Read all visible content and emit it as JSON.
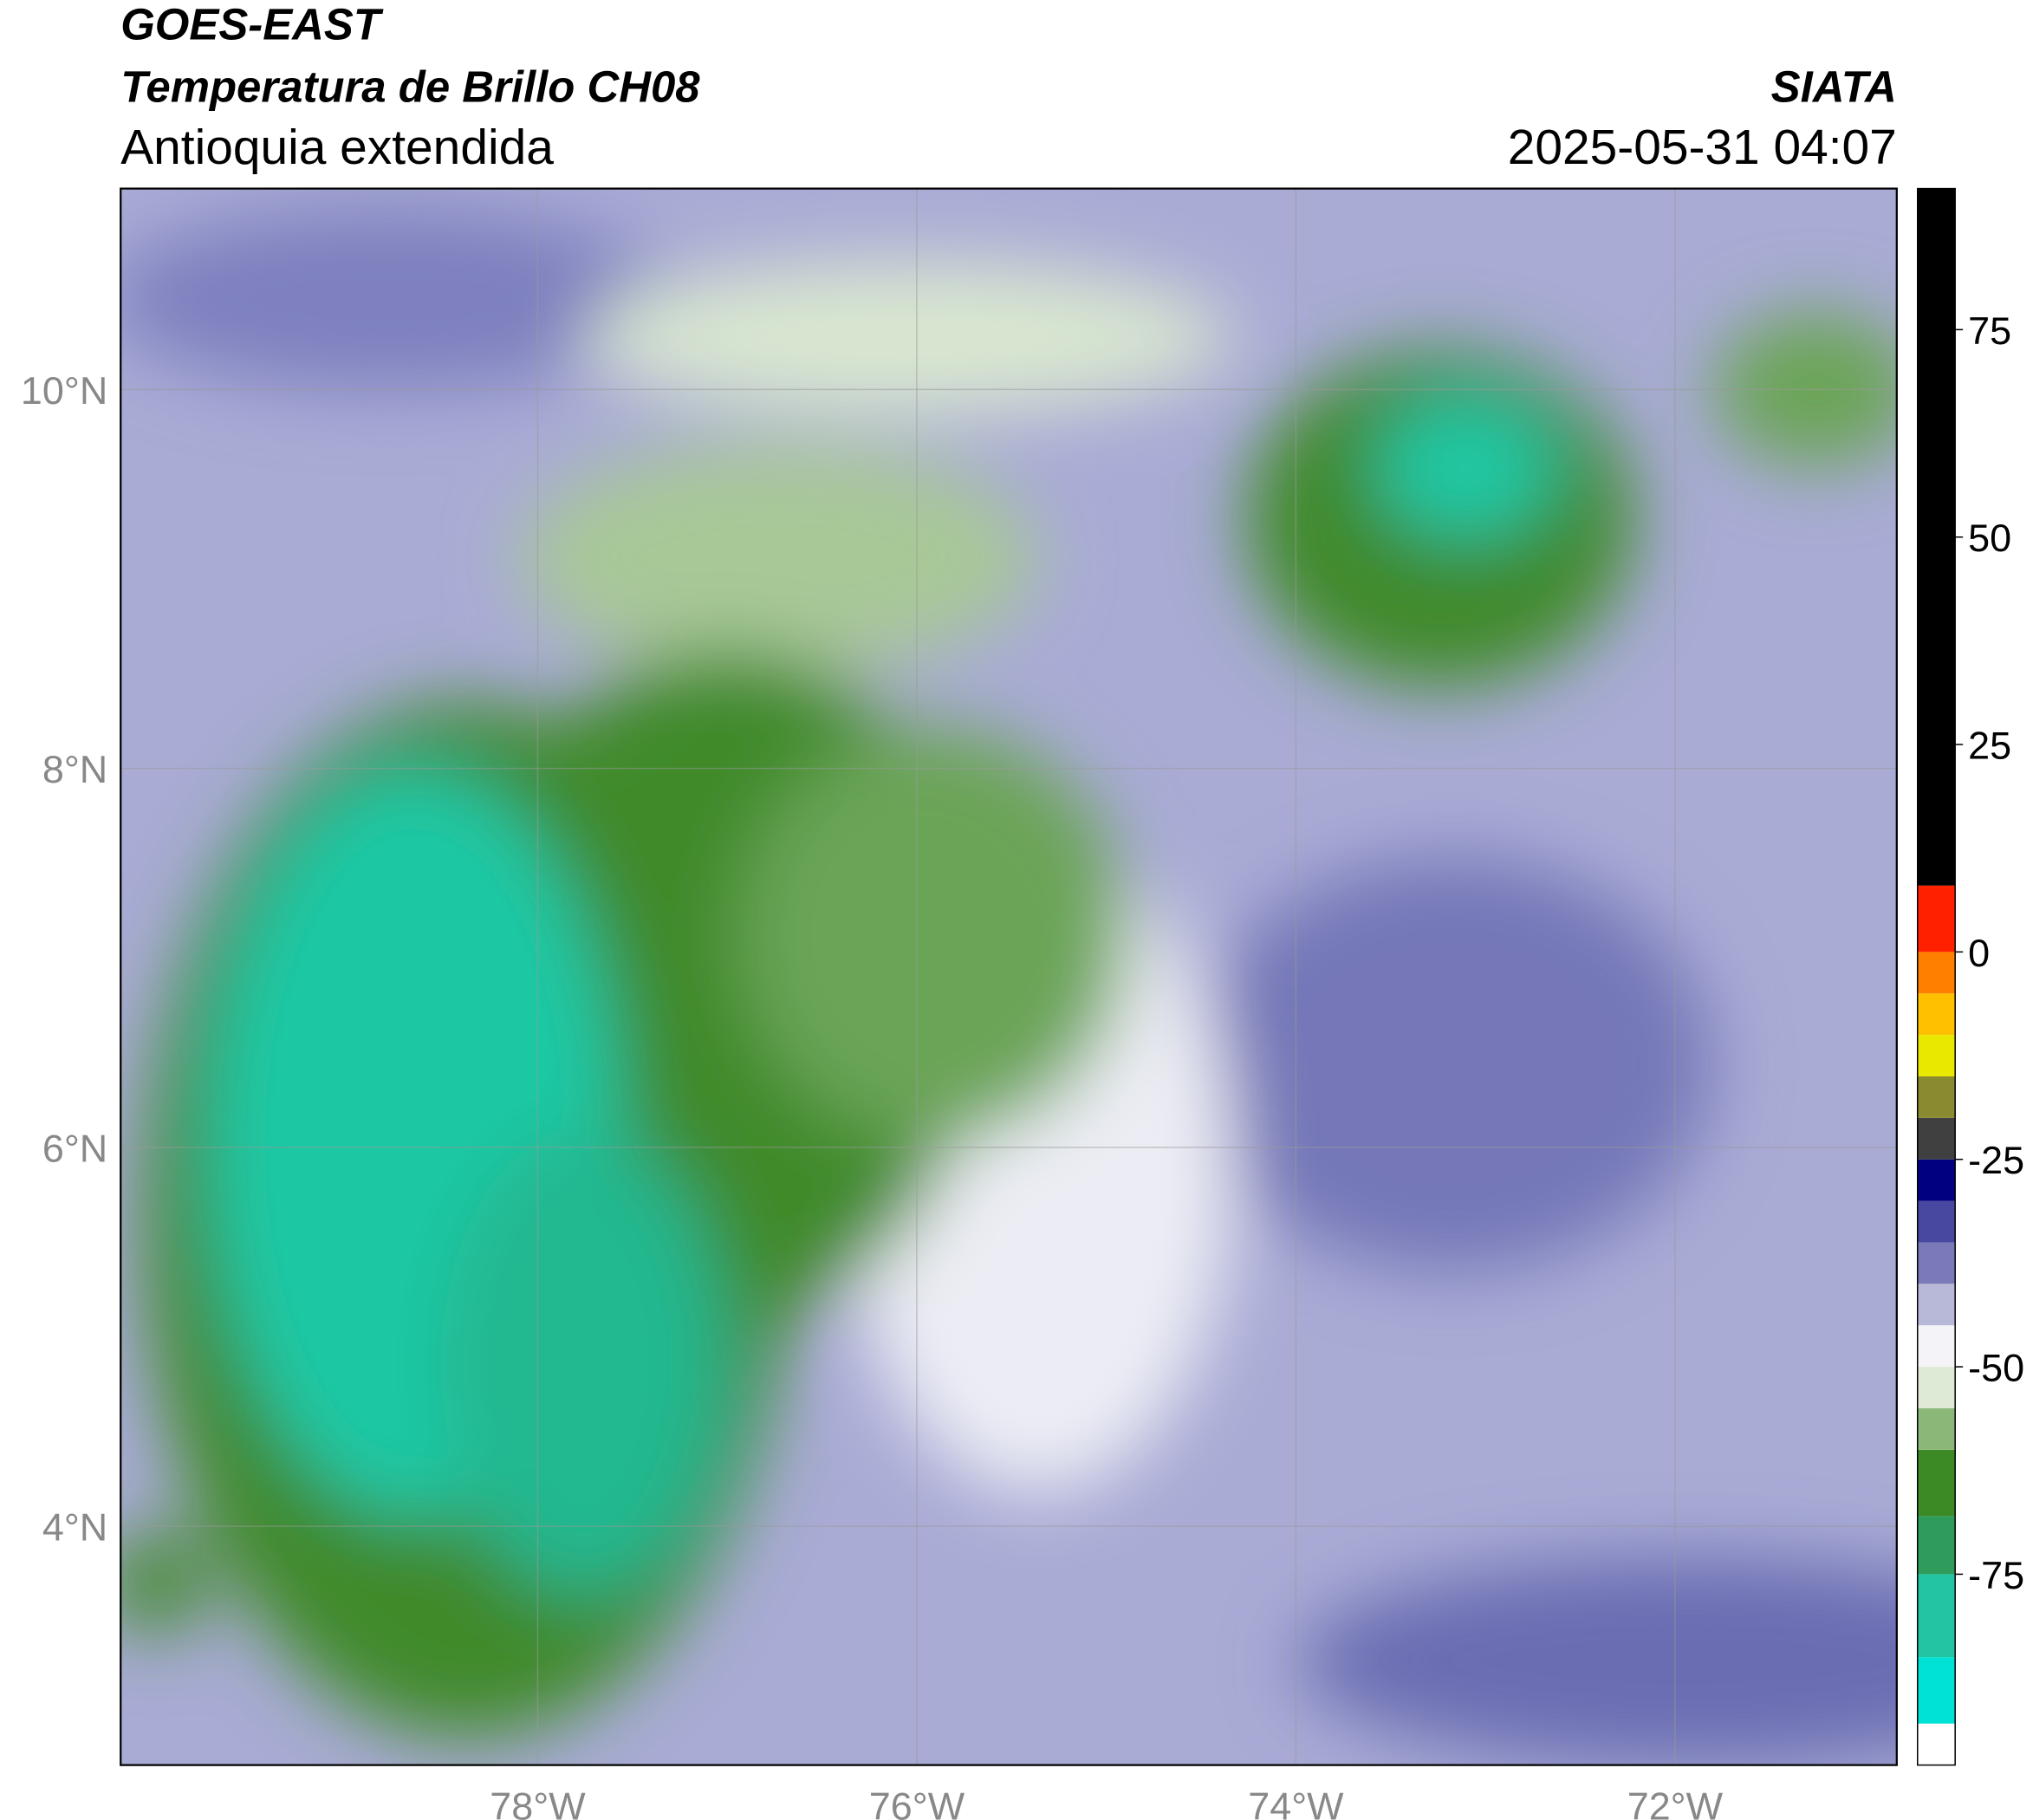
{
  "header": {
    "title": "GOES-EAST",
    "subtitle": "Temperatura de Brillo CH08",
    "region": "Antioquia extendida",
    "source": "SIATA",
    "datetime": "2025-05-31 04:07"
  },
  "map": {
    "xlim": [
      -80.2,
      -70.83
    ],
    "ylim": [
      2.74,
      11.06
    ],
    "grid": true,
    "xticks": [
      {
        "value": -78,
        "label": "78°W"
      },
      {
        "value": -76,
        "label": "76°W"
      },
      {
        "value": -74,
        "label": "74°W"
      },
      {
        "value": -72,
        "label": "72°W"
      }
    ],
    "yticks": [
      {
        "value": 4,
        "label": "4°N"
      },
      {
        "value": 6,
        "label": "6°N"
      },
      {
        "value": 8,
        "label": "8°N"
      },
      {
        "value": 10,
        "label": "10°N"
      }
    ]
  },
  "colorbar": {
    "lim": [
      -98,
      92
    ],
    "ticks": [
      -75,
      -50,
      -25,
      0,
      25,
      50,
      75
    ],
    "bands": [
      {
        "min": -98,
        "max": -93,
        "color": "#ffffff"
      },
      {
        "min": -93,
        "max": -85,
        "color": "#00e2d6"
      },
      {
        "min": -85,
        "max": -75,
        "color": "#22c4a4"
      },
      {
        "min": -75,
        "max": -68,
        "color": "#2f9c5c"
      },
      {
        "min": -68,
        "max": -60,
        "color": "#3b8a26"
      },
      {
        "min": -60,
        "max": -55,
        "color": "#8bb878"
      },
      {
        "min": -55,
        "max": -50,
        "color": "#dfead6"
      },
      {
        "min": -50,
        "max": -45,
        "color": "#f4f4f8"
      },
      {
        "min": -45,
        "max": -40,
        "color": "#b8b8d8"
      },
      {
        "min": -40,
        "max": -35,
        "color": "#7a7ab8"
      },
      {
        "min": -35,
        "max": -30,
        "color": "#4848a0"
      },
      {
        "min": -30,
        "max": -25,
        "color": "#000080"
      },
      {
        "min": -25,
        "max": -20,
        "color": "#404040"
      },
      {
        "min": -20,
        "max": -15,
        "color": "#8a8a30"
      },
      {
        "min": -15,
        "max": -10,
        "color": "#e8e800"
      },
      {
        "min": -10,
        "max": -5,
        "color": "#ffc000"
      },
      {
        "min": -5,
        "max": 0,
        "color": "#ff8000"
      },
      {
        "min": 0,
        "max": 8,
        "color": "#ff2000"
      },
      {
        "min": 8,
        "max": 92,
        "color": "#000000"
      }
    ]
  }
}
